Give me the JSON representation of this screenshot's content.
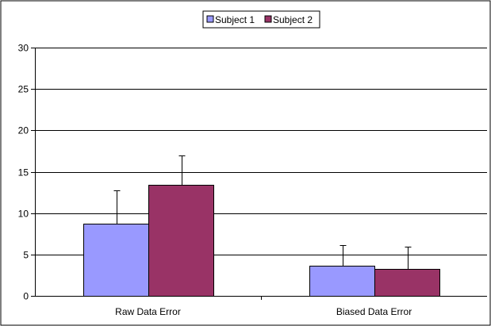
{
  "chart_data": {
    "type": "bar",
    "categories": [
      "Raw Data Error",
      "Biased Data Error"
    ],
    "series": [
      {
        "name": "Subject 1",
        "values": [
          8.7,
          3.6
        ],
        "error_upper": [
          12.7,
          6.1
        ],
        "color": "#9999ff"
      },
      {
        "name": "Subject 2",
        "values": [
          13.4,
          3.3
        ],
        "error_upper": [
          17.0,
          5.9
        ],
        "color": "#993366"
      }
    ],
    "title": "",
    "xlabel": "",
    "ylabel": "",
    "ylim": [
      0,
      30
    ],
    "yticks": [
      "0",
      "5",
      "10",
      "15",
      "20",
      "25",
      "30"
    ],
    "grid": true,
    "legend": "top-center"
  }
}
